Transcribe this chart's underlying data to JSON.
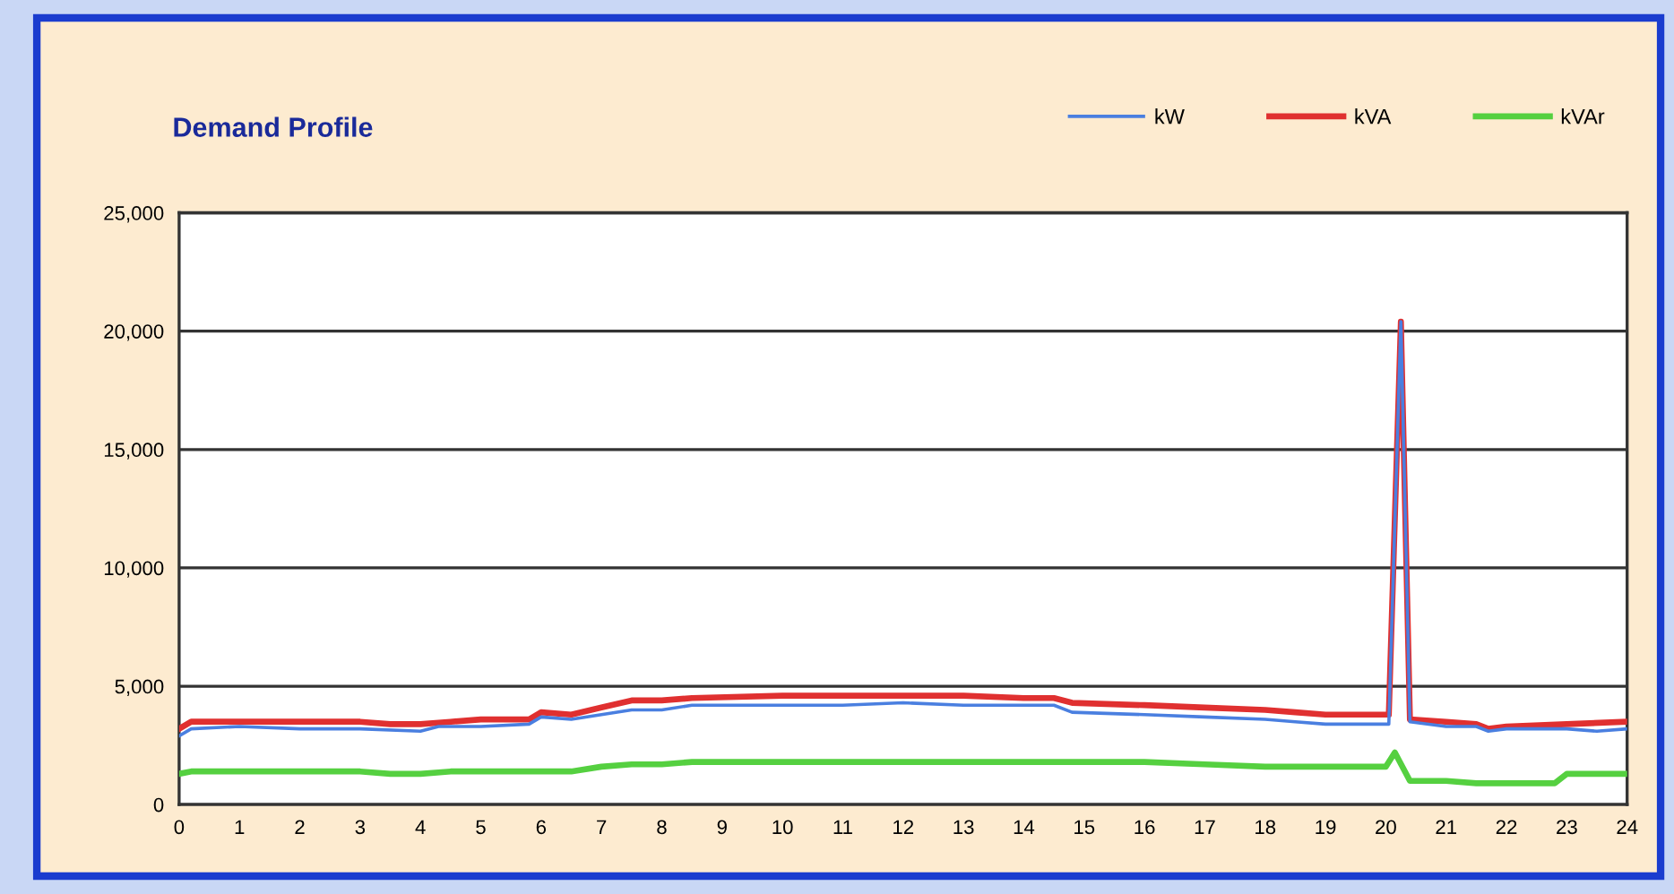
{
  "chart_data": {
    "type": "line",
    "title": "Demand Profile",
    "xlim": [
      0,
      24
    ],
    "xticks": [
      0,
      1,
      2,
      3,
      4,
      5,
      6,
      7,
      8,
      9,
      10,
      11,
      12,
      13,
      14,
      15,
      16,
      17,
      18,
      19,
      20,
      21,
      22,
      23,
      24
    ],
    "ylim": [
      0,
      25000
    ],
    "yticks": [
      {
        "value": 0,
        "label": "0"
      },
      {
        "value": 5000,
        "label": "5,000"
      },
      {
        "value": 10000,
        "label": "10,000"
      },
      {
        "value": 15000,
        "label": "15,000"
      },
      {
        "value": 20000,
        "label": "20,000"
      },
      {
        "value": 25000,
        "label": "25,000"
      }
    ],
    "grid": "y",
    "legend": "top right",
    "marker": "none",
    "line_style": "solid",
    "series": [
      {
        "name": "kW",
        "color": "#4a7fe0",
        "x": [
          0,
          0.2,
          1,
          2,
          3,
          4,
          4.3,
          5,
          5.8,
          6,
          6.5,
          7,
          7.5,
          8,
          8.5,
          10,
          11,
          12,
          13,
          14.5,
          14.8,
          16,
          17,
          18,
          18.5,
          19,
          20,
          20.05,
          20.25,
          20.4,
          21,
          21.5,
          21.7,
          22,
          23,
          23.5,
          24
        ],
        "values": [
          2900,
          3200,
          3300,
          3200,
          3200,
          3100,
          3300,
          3300,
          3400,
          3700,
          3600,
          3800,
          4000,
          4000,
          4200,
          4200,
          4200,
          4300,
          4200,
          4200,
          3900,
          3800,
          3700,
          3600,
          3500,
          3400,
          3400,
          3400,
          20400,
          3500,
          3300,
          3300,
          3100,
          3200,
          3200,
          3100,
          3200
        ]
      },
      {
        "name": "kVA",
        "color": "#e03030",
        "x": [
          0,
          0.2,
          1,
          3,
          3.5,
          4,
          4.5,
          5,
          5.8,
          6,
          6.5,
          7,
          7.5,
          8,
          8.5,
          10,
          11,
          12,
          13,
          14,
          14.5,
          14.8,
          16,
          17,
          18,
          18.5,
          19,
          20,
          20.05,
          20.25,
          20.4,
          21,
          21.5,
          21.7,
          22,
          23,
          24
        ],
        "values": [
          3200,
          3500,
          3500,
          3500,
          3400,
          3400,
          3500,
          3600,
          3600,
          3900,
          3800,
          4100,
          4400,
          4400,
          4500,
          4600,
          4600,
          4600,
          4600,
          4500,
          4500,
          4300,
          4200,
          4100,
          4000,
          3900,
          3800,
          3800,
          3800,
          20400,
          3600,
          3500,
          3400,
          3200,
          3300,
          3400,
          3500
        ]
      },
      {
        "name": "kVAr",
        "color": "#55d040",
        "x": [
          0,
          0.2,
          3,
          3.5,
          4,
          4.5,
          6.5,
          7,
          7.5,
          8,
          8.5,
          16,
          17,
          18,
          20,
          20.15,
          20.4,
          21,
          21.5,
          22,
          22.8,
          23,
          24
        ],
        "values": [
          1300,
          1400,
          1400,
          1300,
          1300,
          1400,
          1400,
          1600,
          1700,
          1700,
          1800,
          1800,
          1700,
          1600,
          1600,
          2200,
          1000,
          1000,
          900,
          900,
          900,
          1300,
          1300
        ]
      }
    ]
  }
}
